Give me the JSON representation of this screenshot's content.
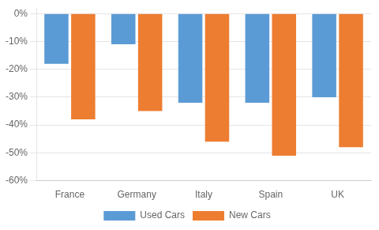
{
  "chart_data": {
    "type": "bar",
    "categories": [
      "France",
      "Germany",
      "Italy",
      "Spain",
      "UK"
    ],
    "series": [
      {
        "name": "Used Cars",
        "color": "#5b9bd5",
        "values": [
          -18,
          -11,
          -32,
          -32,
          -30
        ]
      },
      {
        "name": "New Cars",
        "color": "#ed7d31",
        "values": [
          -38,
          -35,
          -46,
          -51,
          -48
        ]
      }
    ],
    "ylim": [
      -60,
      2
    ],
    "yticks": [
      {
        "value": 0,
        "label": "0%"
      },
      {
        "value": -10,
        "label": "-10%"
      },
      {
        "value": -20,
        "label": "-20%"
      },
      {
        "value": -30,
        "label": "-30%"
      },
      {
        "value": -40,
        "label": "-40%"
      },
      {
        "value": -50,
        "label": "-50%"
      },
      {
        "value": -60,
        "label": "-60%"
      }
    ],
    "grid": true,
    "legend": "bottom"
  }
}
